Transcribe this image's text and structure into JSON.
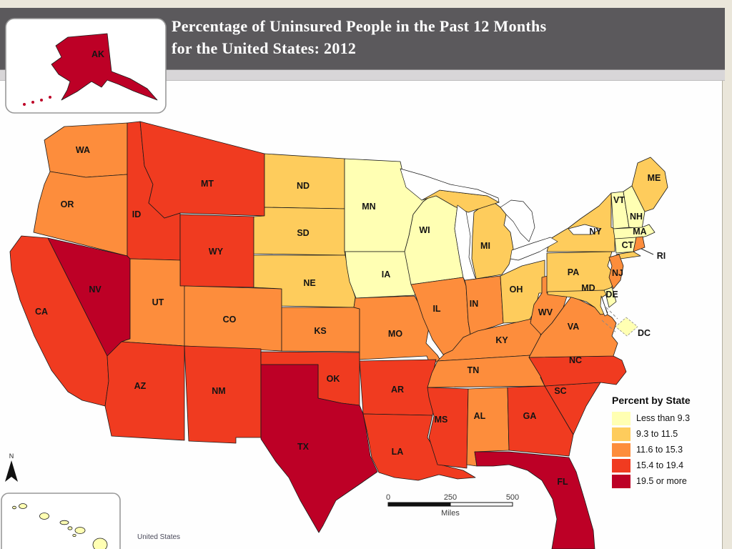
{
  "title": {
    "line1": "Percentage of Uninsured People in the Past 12 Months",
    "line2": "for the United States: 2012"
  },
  "legend": {
    "title": "Percent by State",
    "classes": [
      {
        "label": "Less than 9.3",
        "color": "#FFFFB3"
      },
      {
        "label": "9.3 to 11.5",
        "color": "#FECC5C"
      },
      {
        "label": "11.6 to 15.3",
        "color": "#FD8D3C"
      },
      {
        "label": "15.4 to 19.4",
        "color": "#F03B20"
      },
      {
        "label": "19.5 or more",
        "color": "#BD0026"
      }
    ]
  },
  "scalebar": {
    "t0": "0",
    "t250": "250",
    "t500": "500",
    "unit": "Miles"
  },
  "compass": {
    "label": "N"
  },
  "source_note": "United States",
  "map": {
    "states": [
      {
        "abbr": "WA",
        "class": 2
      },
      {
        "abbr": "OR",
        "class": 2
      },
      {
        "abbr": "CA",
        "class": 3
      },
      {
        "abbr": "NV",
        "class": 4
      },
      {
        "abbr": "ID",
        "class": 3
      },
      {
        "abbr": "MT",
        "class": 3
      },
      {
        "abbr": "WY",
        "class": 3
      },
      {
        "abbr": "UT",
        "class": 2
      },
      {
        "abbr": "CO",
        "class": 2
      },
      {
        "abbr": "AZ",
        "class": 3
      },
      {
        "abbr": "NM",
        "class": 3
      },
      {
        "abbr": "ND",
        "class": 1
      },
      {
        "abbr": "SD",
        "class": 1
      },
      {
        "abbr": "NE",
        "class": 1
      },
      {
        "abbr": "KS",
        "class": 2
      },
      {
        "abbr": "OK",
        "class": 3
      },
      {
        "abbr": "TX",
        "class": 4
      },
      {
        "abbr": "MN",
        "class": 0
      },
      {
        "abbr": "IA",
        "class": 0
      },
      {
        "abbr": "MO",
        "class": 2
      },
      {
        "abbr": "AR",
        "class": 3
      },
      {
        "abbr": "LA",
        "class": 3
      },
      {
        "abbr": "WI",
        "class": 0
      },
      {
        "abbr": "IL",
        "class": 2
      },
      {
        "abbr": "MI",
        "class": 1
      },
      {
        "abbr": "IN",
        "class": 2
      },
      {
        "abbr": "OH",
        "class": 1
      },
      {
        "abbr": "KY",
        "class": 2
      },
      {
        "abbr": "TN",
        "class": 2
      },
      {
        "abbr": "MS",
        "class": 3
      },
      {
        "abbr": "AL",
        "class": 2
      },
      {
        "abbr": "GA",
        "class": 3
      },
      {
        "abbr": "FL",
        "class": 4
      },
      {
        "abbr": "SC",
        "class": 3
      },
      {
        "abbr": "NC",
        "class": 3
      },
      {
        "abbr": "VA",
        "class": 2
      },
      {
        "abbr": "WV",
        "class": 2
      },
      {
        "abbr": "PA",
        "class": 1
      },
      {
        "abbr": "NY",
        "class": 1
      },
      {
        "abbr": "NJ",
        "class": 2
      },
      {
        "abbr": "DE",
        "class": 0
      },
      {
        "abbr": "MD",
        "class": 1
      },
      {
        "abbr": "DC",
        "class": 0
      },
      {
        "abbr": "VT",
        "class": 0
      },
      {
        "abbr": "NH",
        "class": 0
      },
      {
        "abbr": "MA",
        "class": 0
      },
      {
        "abbr": "CT",
        "class": 0
      },
      {
        "abbr": "RI",
        "class": 2
      },
      {
        "abbr": "ME",
        "class": 1
      },
      {
        "abbr": "AK",
        "class": 4
      },
      {
        "abbr": "HI",
        "class": 0
      }
    ]
  }
}
